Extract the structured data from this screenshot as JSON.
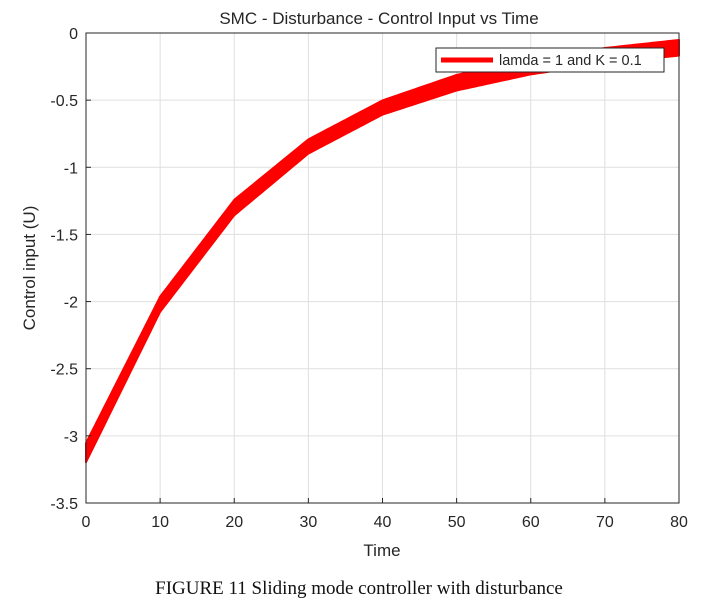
{
  "caption": "FIGURE 11 Sliding mode controller with disturbance",
  "chart_data": {
    "type": "area",
    "title": "SMC - Disturbance - Control Input vs Time",
    "xlabel": "Time",
    "ylabel": "Control input (U)",
    "xlim": [
      0,
      80
    ],
    "ylim": [
      -3.5,
      0
    ],
    "xticks": [
      0,
      10,
      20,
      30,
      40,
      50,
      60,
      70,
      80
    ],
    "yticks": [
      0,
      -0.5,
      -1,
      -1.5,
      -2,
      -2.5,
      -3,
      -3.5
    ],
    "grid": true,
    "legend": {
      "position": "top-right",
      "entries": [
        "lamda = 1 and K = 0.1"
      ]
    },
    "series": [
      {
        "name": "lamda = 1 and K = 0.1",
        "color": "#ff0000",
        "x": [
          0,
          10,
          20,
          30,
          40,
          50,
          60,
          70,
          80
        ],
        "upper": [
          -3.05,
          -1.96,
          -1.24,
          -0.79,
          -0.5,
          -0.31,
          -0.19,
          -0.11,
          -0.05
        ],
        "lower": [
          -3.2,
          -2.08,
          -1.36,
          -0.9,
          -0.61,
          -0.43,
          -0.31,
          -0.23,
          -0.17
        ]
      }
    ]
  }
}
